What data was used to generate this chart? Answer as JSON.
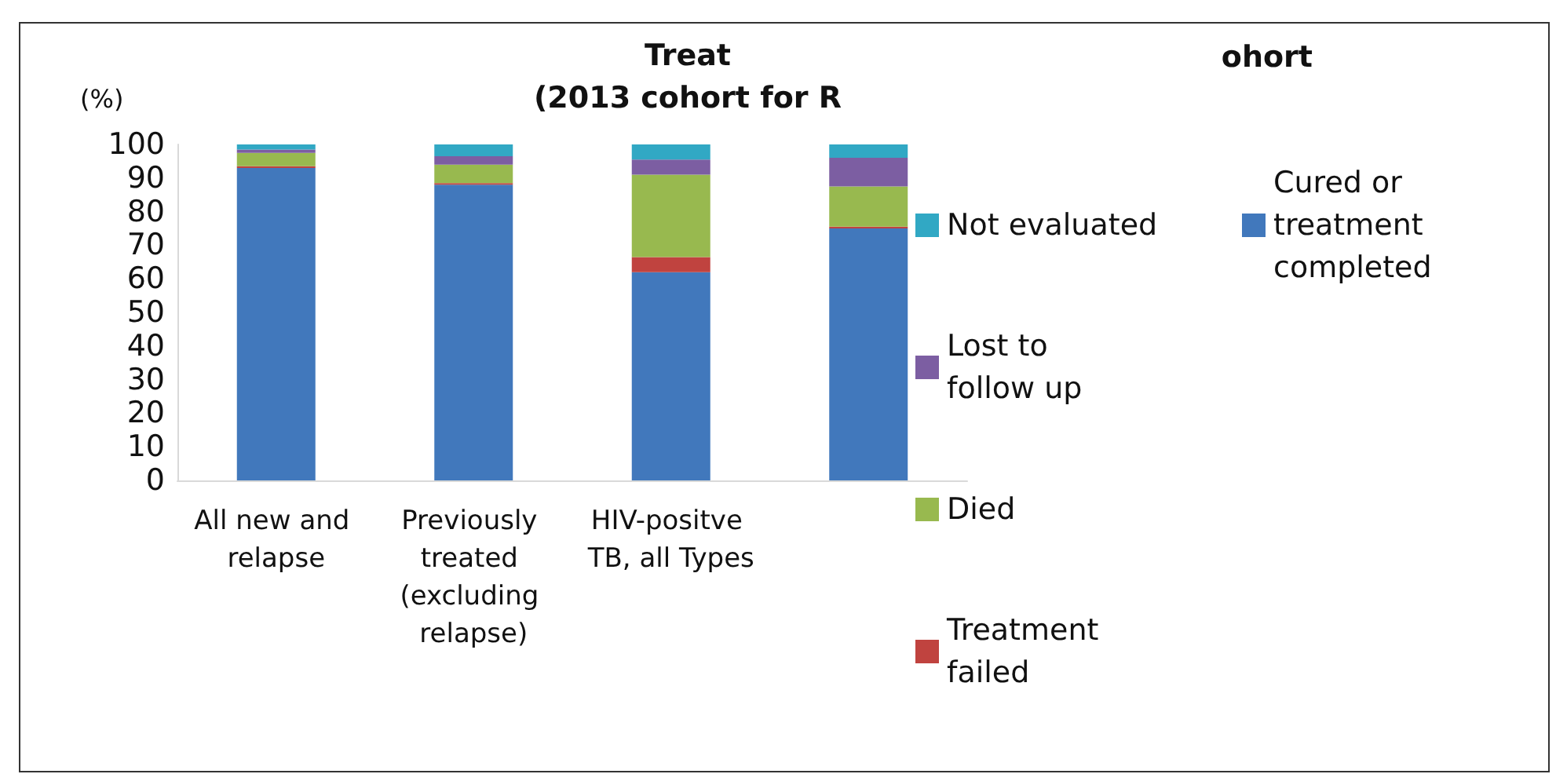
{
  "chart_data": {
    "type": "bar",
    "stacked": true,
    "title": "Treat",
    "subtitle": "(2013 cohort for R",
    "annotations": [
      "ohort"
    ],
    "ylabel": "(%)",
    "categories": [
      "All new and relapse",
      "Previously treated (excluding relapse)",
      "HIV-positve TB, all Types",
      null
    ],
    "series": [
      {
        "name": "Cured or treatment completed",
        "color": "#4178bc",
        "values": [
          93,
          88,
          62,
          75
        ]
      },
      {
        "name": "Treatment failed",
        "color": "#c0433f",
        "values": [
          0.5,
          0.5,
          4.5,
          0.5
        ]
      },
      {
        "name": "Died",
        "color": "#98b94f",
        "values": [
          4,
          5.5,
          24.5,
          12
        ]
      },
      {
        "name": "Lost to follow up",
        "color": "#7c5ea2",
        "values": [
          1,
          2.5,
          4.5,
          8.5
        ]
      },
      {
        "name": "Not evaluated",
        "color": "#31a8c4",
        "values": [
          1.5,
          3.5,
          4.5,
          4
        ]
      }
    ],
    "ylim": [
      0,
      100
    ],
    "yticks": [
      0,
      10,
      20,
      30,
      40,
      50,
      60,
      70,
      80,
      90,
      100
    ],
    "grid": false,
    "legend": "right"
  }
}
